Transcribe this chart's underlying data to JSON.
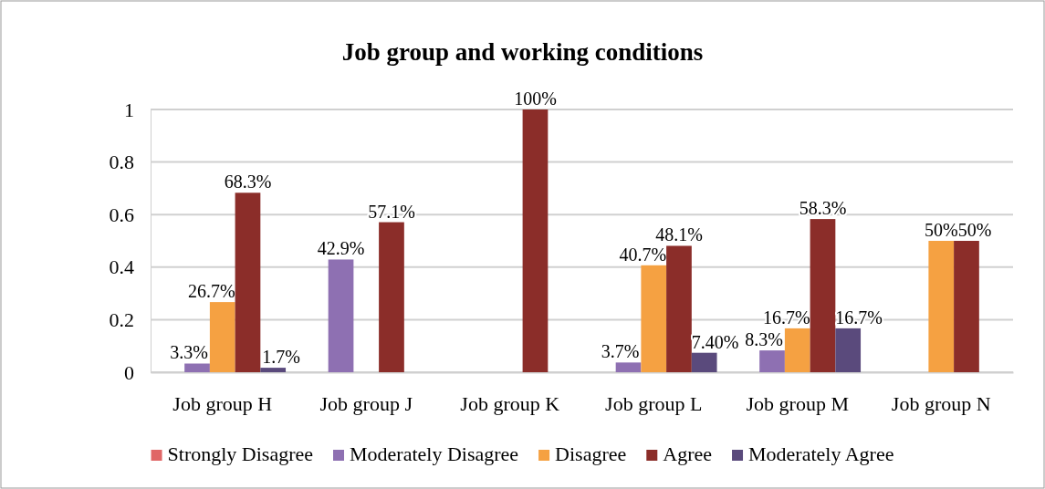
{
  "chart_data": {
    "type": "bar",
    "title": "Job group and working conditions",
    "categories": [
      "Job group H",
      "Job group J",
      "Job group K",
      "Job group L",
      "Job group M",
      "Job group N"
    ],
    "series": [
      {
        "name": "Strongly Disagree",
        "color": "#e06666",
        "values": [
          null,
          null,
          null,
          null,
          null,
          null
        ],
        "value_labels": [
          null,
          null,
          null,
          null,
          null,
          null
        ]
      },
      {
        "name": "Moderately Disagree",
        "color": "#8e70b2",
        "values": [
          0.033,
          0.429,
          null,
          0.037,
          0.083,
          null
        ],
        "value_labels": [
          "3.3%",
          "42.9%",
          null,
          "3.7%",
          "8.3%",
          null
        ]
      },
      {
        "name": "Disagree",
        "color": "#f5a142",
        "values": [
          0.267,
          null,
          null,
          0.407,
          0.167,
          0.5
        ],
        "value_labels": [
          "26.7%",
          null,
          null,
          "40.7%",
          "16.7%",
          "50%"
        ]
      },
      {
        "name": "Agree",
        "color": "#8b2d29",
        "values": [
          0.683,
          0.571,
          1,
          0.481,
          0.583,
          0.5
        ],
        "value_labels": [
          "68.3%",
          "57.1%",
          "100%",
          "48.1%",
          "58.3%",
          "50%"
        ]
      },
      {
        "name": "Moderately Agree",
        "color": "#5a4a7c",
        "values": [
          0.017,
          null,
          null,
          0.074,
          0.167,
          null
        ],
        "value_labels": [
          "1.7%",
          null,
          null,
          "7.40%",
          "16.7%",
          null
        ]
      }
    ],
    "ylim": [
      0,
      1
    ],
    "yticks": [
      0,
      0.2,
      0.4,
      0.6,
      0.8,
      1
    ],
    "grid": "y",
    "legend": "bottom"
  }
}
